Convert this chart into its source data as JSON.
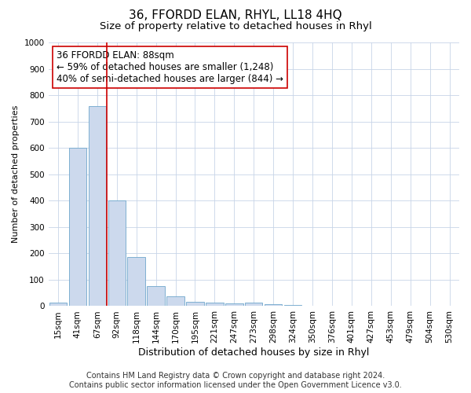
{
  "title": "36, FFORDD ELAN, RHYL, LL18 4HQ",
  "subtitle": "Size of property relative to detached houses in Rhyl",
  "xlabel": "Distribution of detached houses by size in Rhyl",
  "ylabel": "Number of detached properties",
  "categories": [
    "15sqm",
    "41sqm",
    "67sqm",
    "92sqm",
    "118sqm",
    "144sqm",
    "170sqm",
    "195sqm",
    "221sqm",
    "247sqm",
    "273sqm",
    "298sqm",
    "324sqm",
    "350sqm",
    "376sqm",
    "401sqm",
    "427sqm",
    "453sqm",
    "479sqm",
    "504sqm",
    "530sqm"
  ],
  "values": [
    12,
    600,
    760,
    400,
    185,
    75,
    37,
    17,
    13,
    10,
    13,
    7,
    3,
    1,
    0,
    0,
    0,
    0,
    0,
    0,
    0
  ],
  "bar_color": "#ccd9ed",
  "bar_edge_color": "#6ea6cc",
  "vline_color": "#cc0000",
  "vline_index": 2.5,
  "annotation_text": "36 FFORDD ELAN: 88sqm\n← 59% of detached houses are smaller (1,248)\n40% of semi-detached houses are larger (844) →",
  "annotation_box_color": "#ffffff",
  "annotation_box_edge": "#cc0000",
  "ylim": [
    0,
    1000
  ],
  "yticks": [
    0,
    100,
    200,
    300,
    400,
    500,
    600,
    700,
    800,
    900,
    1000
  ],
  "footer1": "Contains HM Land Registry data © Crown copyright and database right 2024.",
  "footer2": "Contains public sector information licensed under the Open Government Licence v3.0.",
  "background_color": "#ffffff",
  "grid_color": "#c8d4e8",
  "title_fontsize": 11,
  "subtitle_fontsize": 9.5,
  "xlabel_fontsize": 9,
  "ylabel_fontsize": 8,
  "tick_fontsize": 7.5,
  "annotation_fontsize": 8.5,
  "footer_fontsize": 7
}
